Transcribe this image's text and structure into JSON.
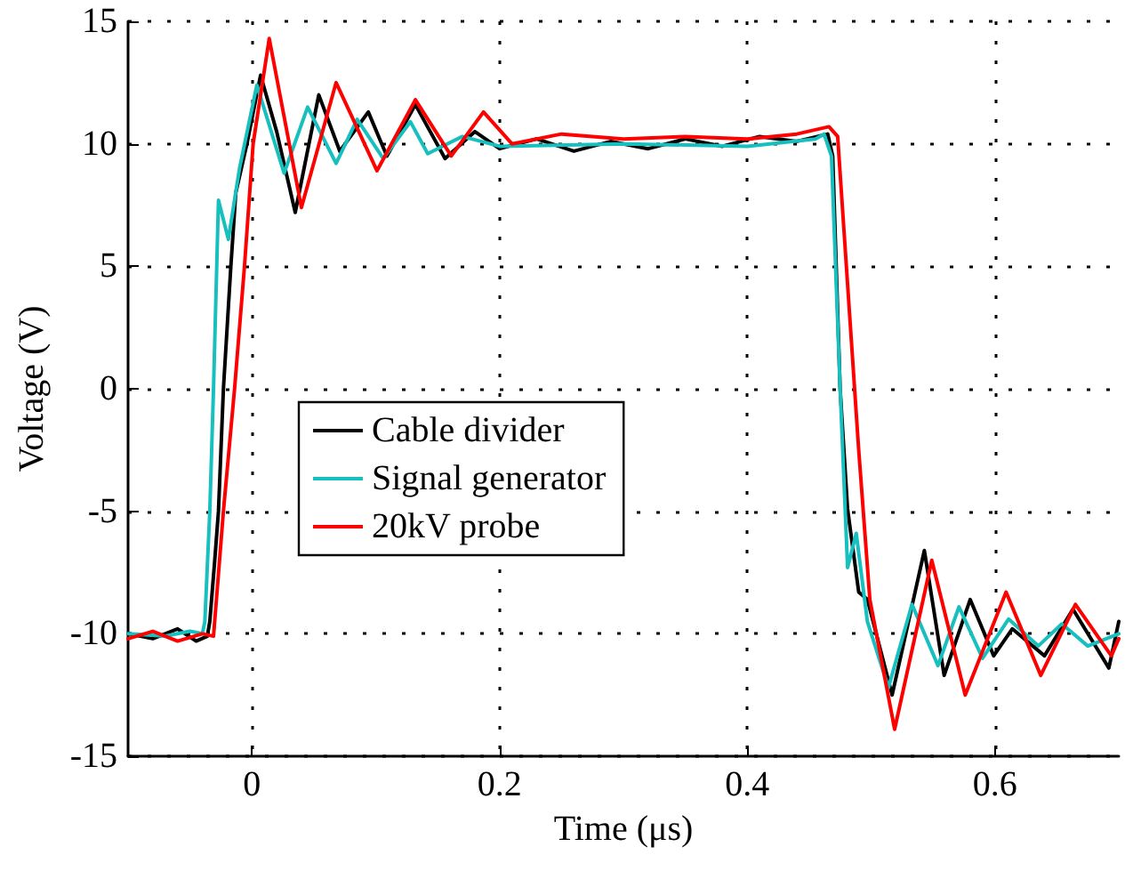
{
  "chart_data": {
    "type": "line",
    "xlabel": "Time (μs)",
    "ylabel": "Voltage (V)",
    "xlim": [
      -0.1,
      0.7
    ],
    "ylim": [
      -15,
      15
    ],
    "xticks": [
      0,
      0.2,
      0.4,
      0.6
    ],
    "yticks": [
      -15,
      -10,
      -5,
      0,
      5,
      10,
      15
    ],
    "grid": true,
    "legend": "left",
    "marker": "none",
    "line_style": "solid",
    "series": [
      {
        "name": "Cable divider",
        "color": "#000000",
        "x": [
          -0.1,
          -0.08,
          -0.06,
          -0.045,
          -0.036,
          -0.034,
          -0.03,
          -0.027,
          -0.023,
          -0.017,
          -0.013,
          -0.004,
          0.007,
          0.02,
          0.035,
          0.054,
          0.071,
          0.094,
          0.109,
          0.132,
          0.156,
          0.18,
          0.2,
          0.23,
          0.26,
          0.29,
          0.32,
          0.35,
          0.38,
          0.41,
          0.44,
          0.465,
          0.469,
          0.475,
          0.481,
          0.49,
          0.497,
          0.517,
          0.543,
          0.559,
          0.58,
          0.599,
          0.614,
          0.64,
          0.663,
          0.692,
          0.7
        ],
        "values": [
          -10,
          -10.2,
          -9.8,
          -10.3,
          -10.1,
          -9.5,
          -7,
          -5,
          0,
          5,
          8,
          10,
          12.8,
          10.5,
          7.2,
          12,
          9.7,
          11.3,
          9.5,
          11.6,
          9.4,
          10.5,
          9.8,
          10.2,
          9.7,
          10.1,
          9.8,
          10.2,
          9.9,
          10.3,
          10.1,
          10.4,
          9.5,
          0,
          -4.9,
          -8.3,
          -8.6,
          -12.5,
          -6.6,
          -11.7,
          -8.6,
          -10.9,
          -9.8,
          -10.9,
          -9,
          -11.4,
          -9.5
        ]
      },
      {
        "name": "Signal generator",
        "color": "#17bfbf",
        "x": [
          -0.1,
          -0.07,
          -0.05,
          -0.04,
          -0.038,
          -0.034,
          -0.031,
          -0.027,
          -0.019,
          -0.01,
          0.004,
          0.026,
          0.045,
          0.068,
          0.085,
          0.106,
          0.128,
          0.142,
          0.17,
          0.2,
          0.3,
          0.4,
          0.455,
          0.462,
          0.468,
          0.475,
          0.481,
          0.488,
          0.497,
          0.514,
          0.533,
          0.554,
          0.571,
          0.59,
          0.611,
          0.635,
          0.654,
          0.675,
          0.7
        ],
        "values": [
          -10,
          -10.1,
          -9.9,
          -10,
          -9.5,
          -5,
          0,
          7.7,
          6.1,
          9,
          12.4,
          8.8,
          11.5,
          9.2,
          11,
          9.4,
          10.9,
          9.6,
          10.3,
          9.9,
          10,
          9.9,
          10.2,
          10.4,
          9.5,
          0,
          -7.3,
          -5.9,
          -9.5,
          -12.2,
          -8.8,
          -11.3,
          -8.9,
          -11,
          -9.4,
          -10.5,
          -9.6,
          -10.5,
          -10
        ]
      },
      {
        "name": "20kV probe",
        "color": "#ff0000",
        "x": [
          -0.1,
          -0.08,
          -0.06,
          -0.04,
          -0.031,
          -0.023,
          -0.014,
          -0.006,
          0.001,
          0.014,
          0.04,
          0.068,
          0.101,
          0.132,
          0.161,
          0.187,
          0.21,
          0.25,
          0.3,
          0.35,
          0.4,
          0.44,
          0.466,
          0.473,
          0.49,
          0.499,
          0.519,
          0.549,
          0.576,
          0.609,
          0.637,
          0.665,
          0.694,
          0.7
        ],
        "values": [
          -10.2,
          -9.9,
          -10.3,
          -10,
          -10.1,
          -5,
          0,
          5,
          10,
          14.3,
          7.4,
          12.5,
          8.9,
          11.8,
          9.5,
          11.3,
          10,
          10.4,
          10.2,
          10.3,
          10.2,
          10.4,
          10.7,
          10.3,
          -2.5,
          -8.6,
          -13.9,
          -7,
          -12.5,
          -8.3,
          -11.7,
          -8.8,
          -10.9,
          -10.2
        ]
      }
    ]
  }
}
